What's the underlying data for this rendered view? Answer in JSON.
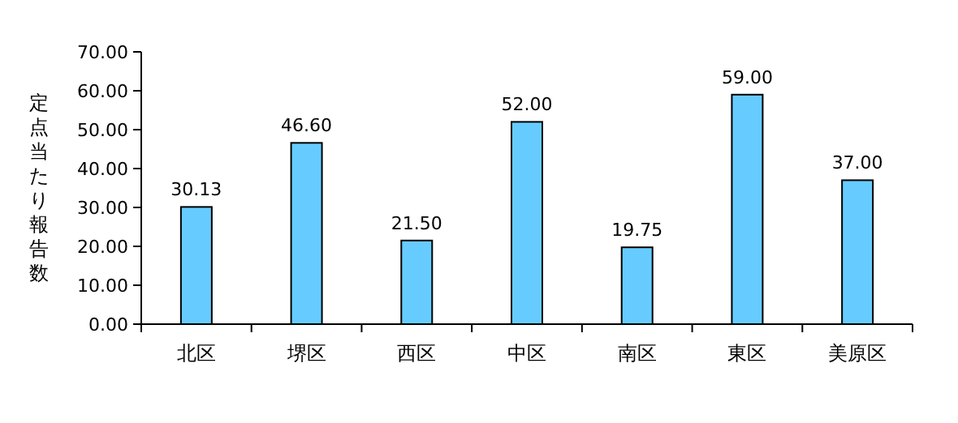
{
  "chart_data": {
    "type": "bar",
    "ylabel": "定点当たり報告数",
    "categories": [
      "北区",
      "堺区",
      "西区",
      "中区",
      "南区",
      "東区",
      "美原区"
    ],
    "values": [
      30.13,
      46.6,
      21.5,
      52.0,
      19.75,
      59.0,
      37.0
    ],
    "value_labels": [
      "30.13",
      "46.60",
      "21.50",
      "52.00",
      "19.75",
      "59.00",
      "37.00"
    ],
    "color": "#66ccff",
    "ylim": [
      0,
      70
    ],
    "yticks": [
      {
        "value": 0,
        "label": "0.00"
      },
      {
        "value": 10,
        "label": "10.00"
      },
      {
        "value": 20,
        "label": "20.00"
      },
      {
        "value": 30,
        "label": "30.00"
      },
      {
        "value": 40,
        "label": "40.00"
      },
      {
        "value": 50,
        "label": "50.00"
      },
      {
        "value": 60,
        "label": "60.00"
      },
      {
        "value": 70,
        "label": "70.00"
      }
    ],
    "grid": false
  }
}
